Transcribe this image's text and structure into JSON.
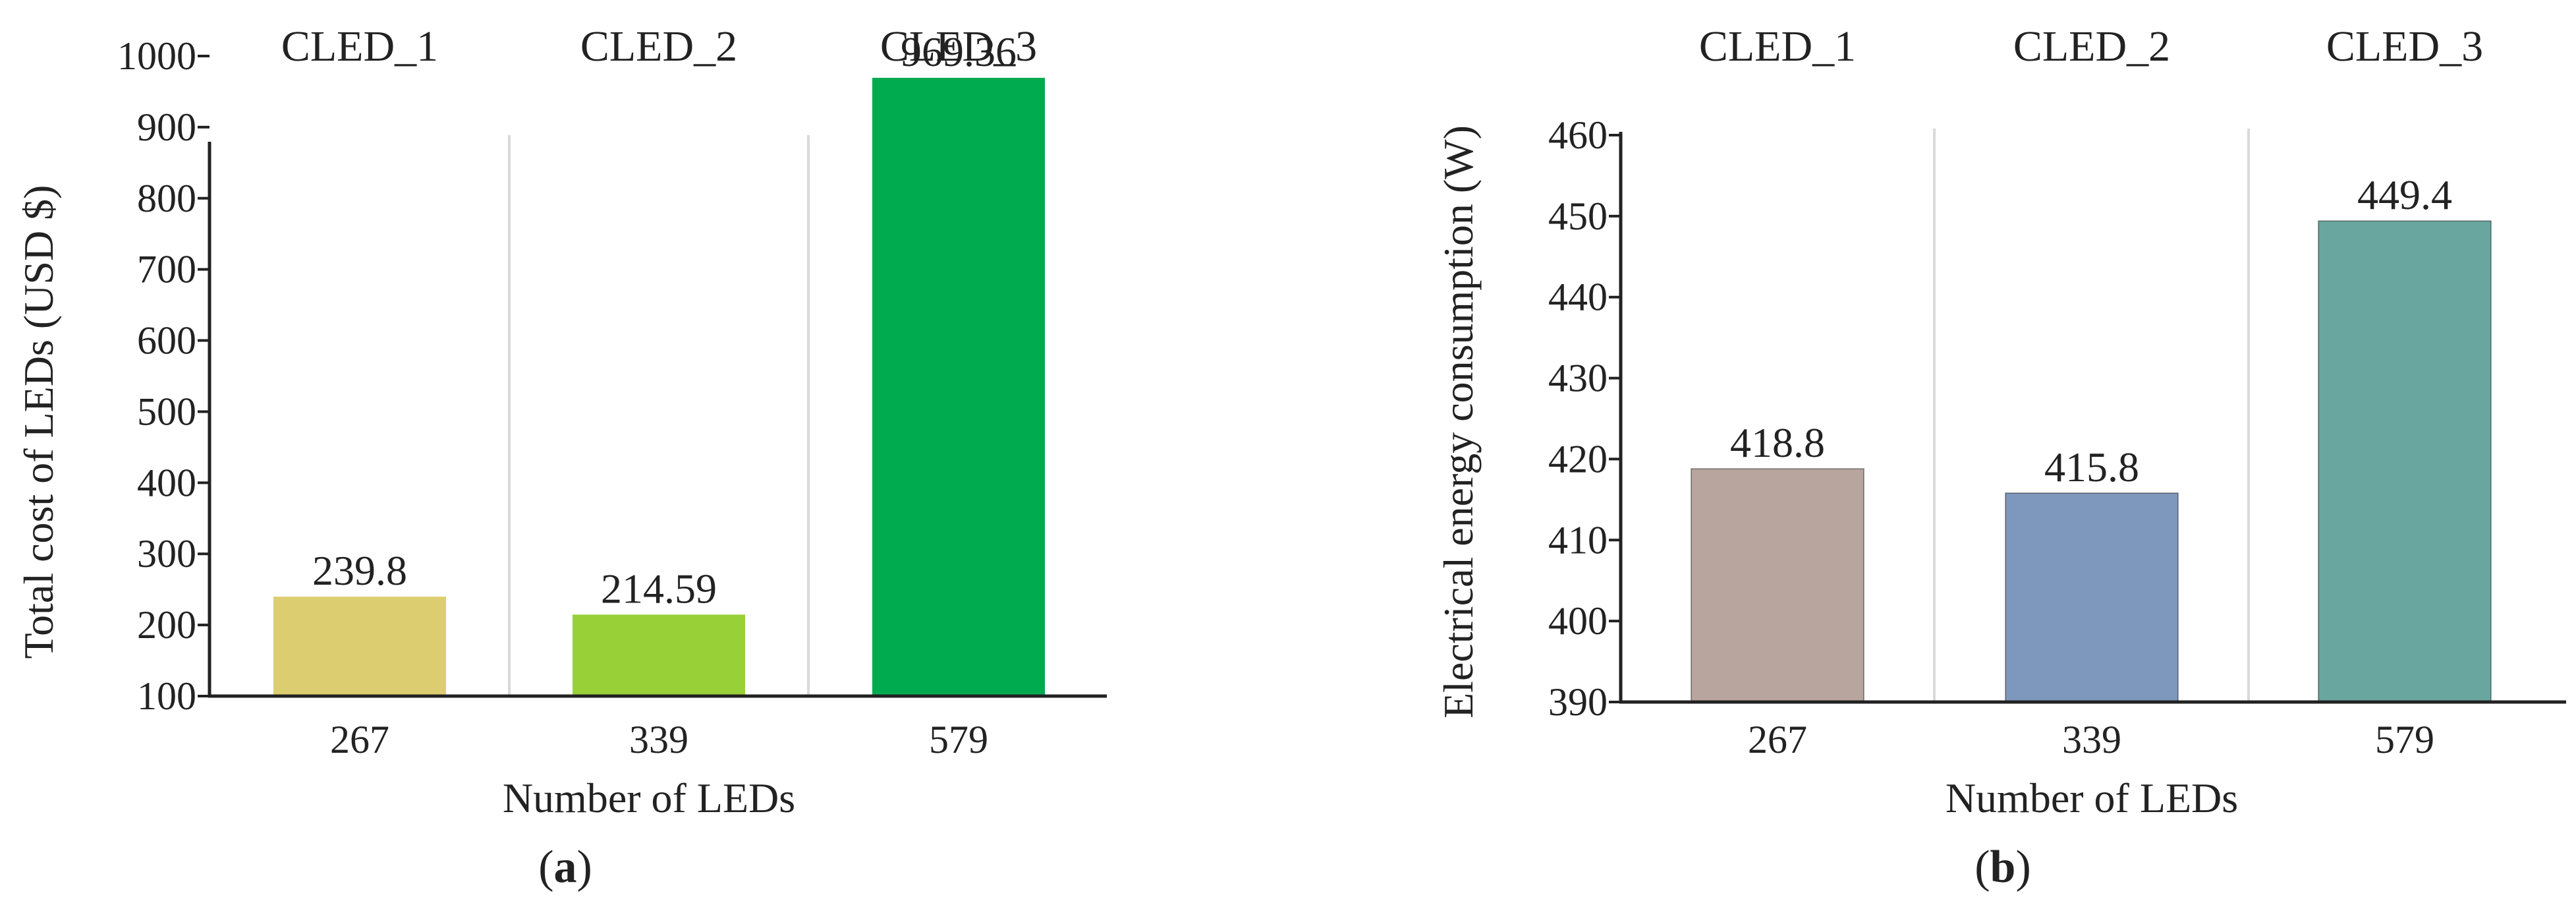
{
  "chart_data": [
    {
      "type": "bar",
      "categories": [
        "CLED_1",
        "CLED_2",
        "CLED_3"
      ],
      "x_tick_labels": [
        "267",
        "339",
        "579"
      ],
      "values": [
        239.8,
        214.59,
        969.36
      ],
      "data_labels": [
        "239.8",
        "214.59",
        "969.36"
      ],
      "colors": [
        "#dccd70",
        "#98d137",
        "#00aa4f"
      ],
      "ylabel": "Total cost of LEDs (USD $)",
      "xlabel": "Number of LEDs",
      "ylim": [
        100,
        1000
      ],
      "yticks": [
        "100",
        "200",
        "300",
        "400",
        "500",
        "600",
        "700",
        "800",
        "900",
        "1000"
      ],
      "caption_letter": "a",
      "caption_open": "(",
      "caption_close": ")"
    },
    {
      "type": "bar",
      "categories": [
        "CLED_1",
        "CLED_2",
        "CLED_3"
      ],
      "x_tick_labels": [
        "267",
        "339",
        "579"
      ],
      "values": [
        418.8,
        415.8,
        449.4
      ],
      "data_labels": [
        "418.8",
        "415.8",
        "449.4"
      ],
      "colors": [
        "#b7a59e",
        "#7e97bc",
        "#69a6a0"
      ],
      "ylabel": "Electrical energy consumption (W)",
      "xlabel": "Number of LEDs",
      "ylim": [
        390,
        460
      ],
      "yticks": [
        "390",
        "400",
        "410",
        "420",
        "430",
        "440",
        "450",
        "460"
      ],
      "caption_letter": "b",
      "caption_open": "(",
      "caption_close": ")"
    }
  ]
}
